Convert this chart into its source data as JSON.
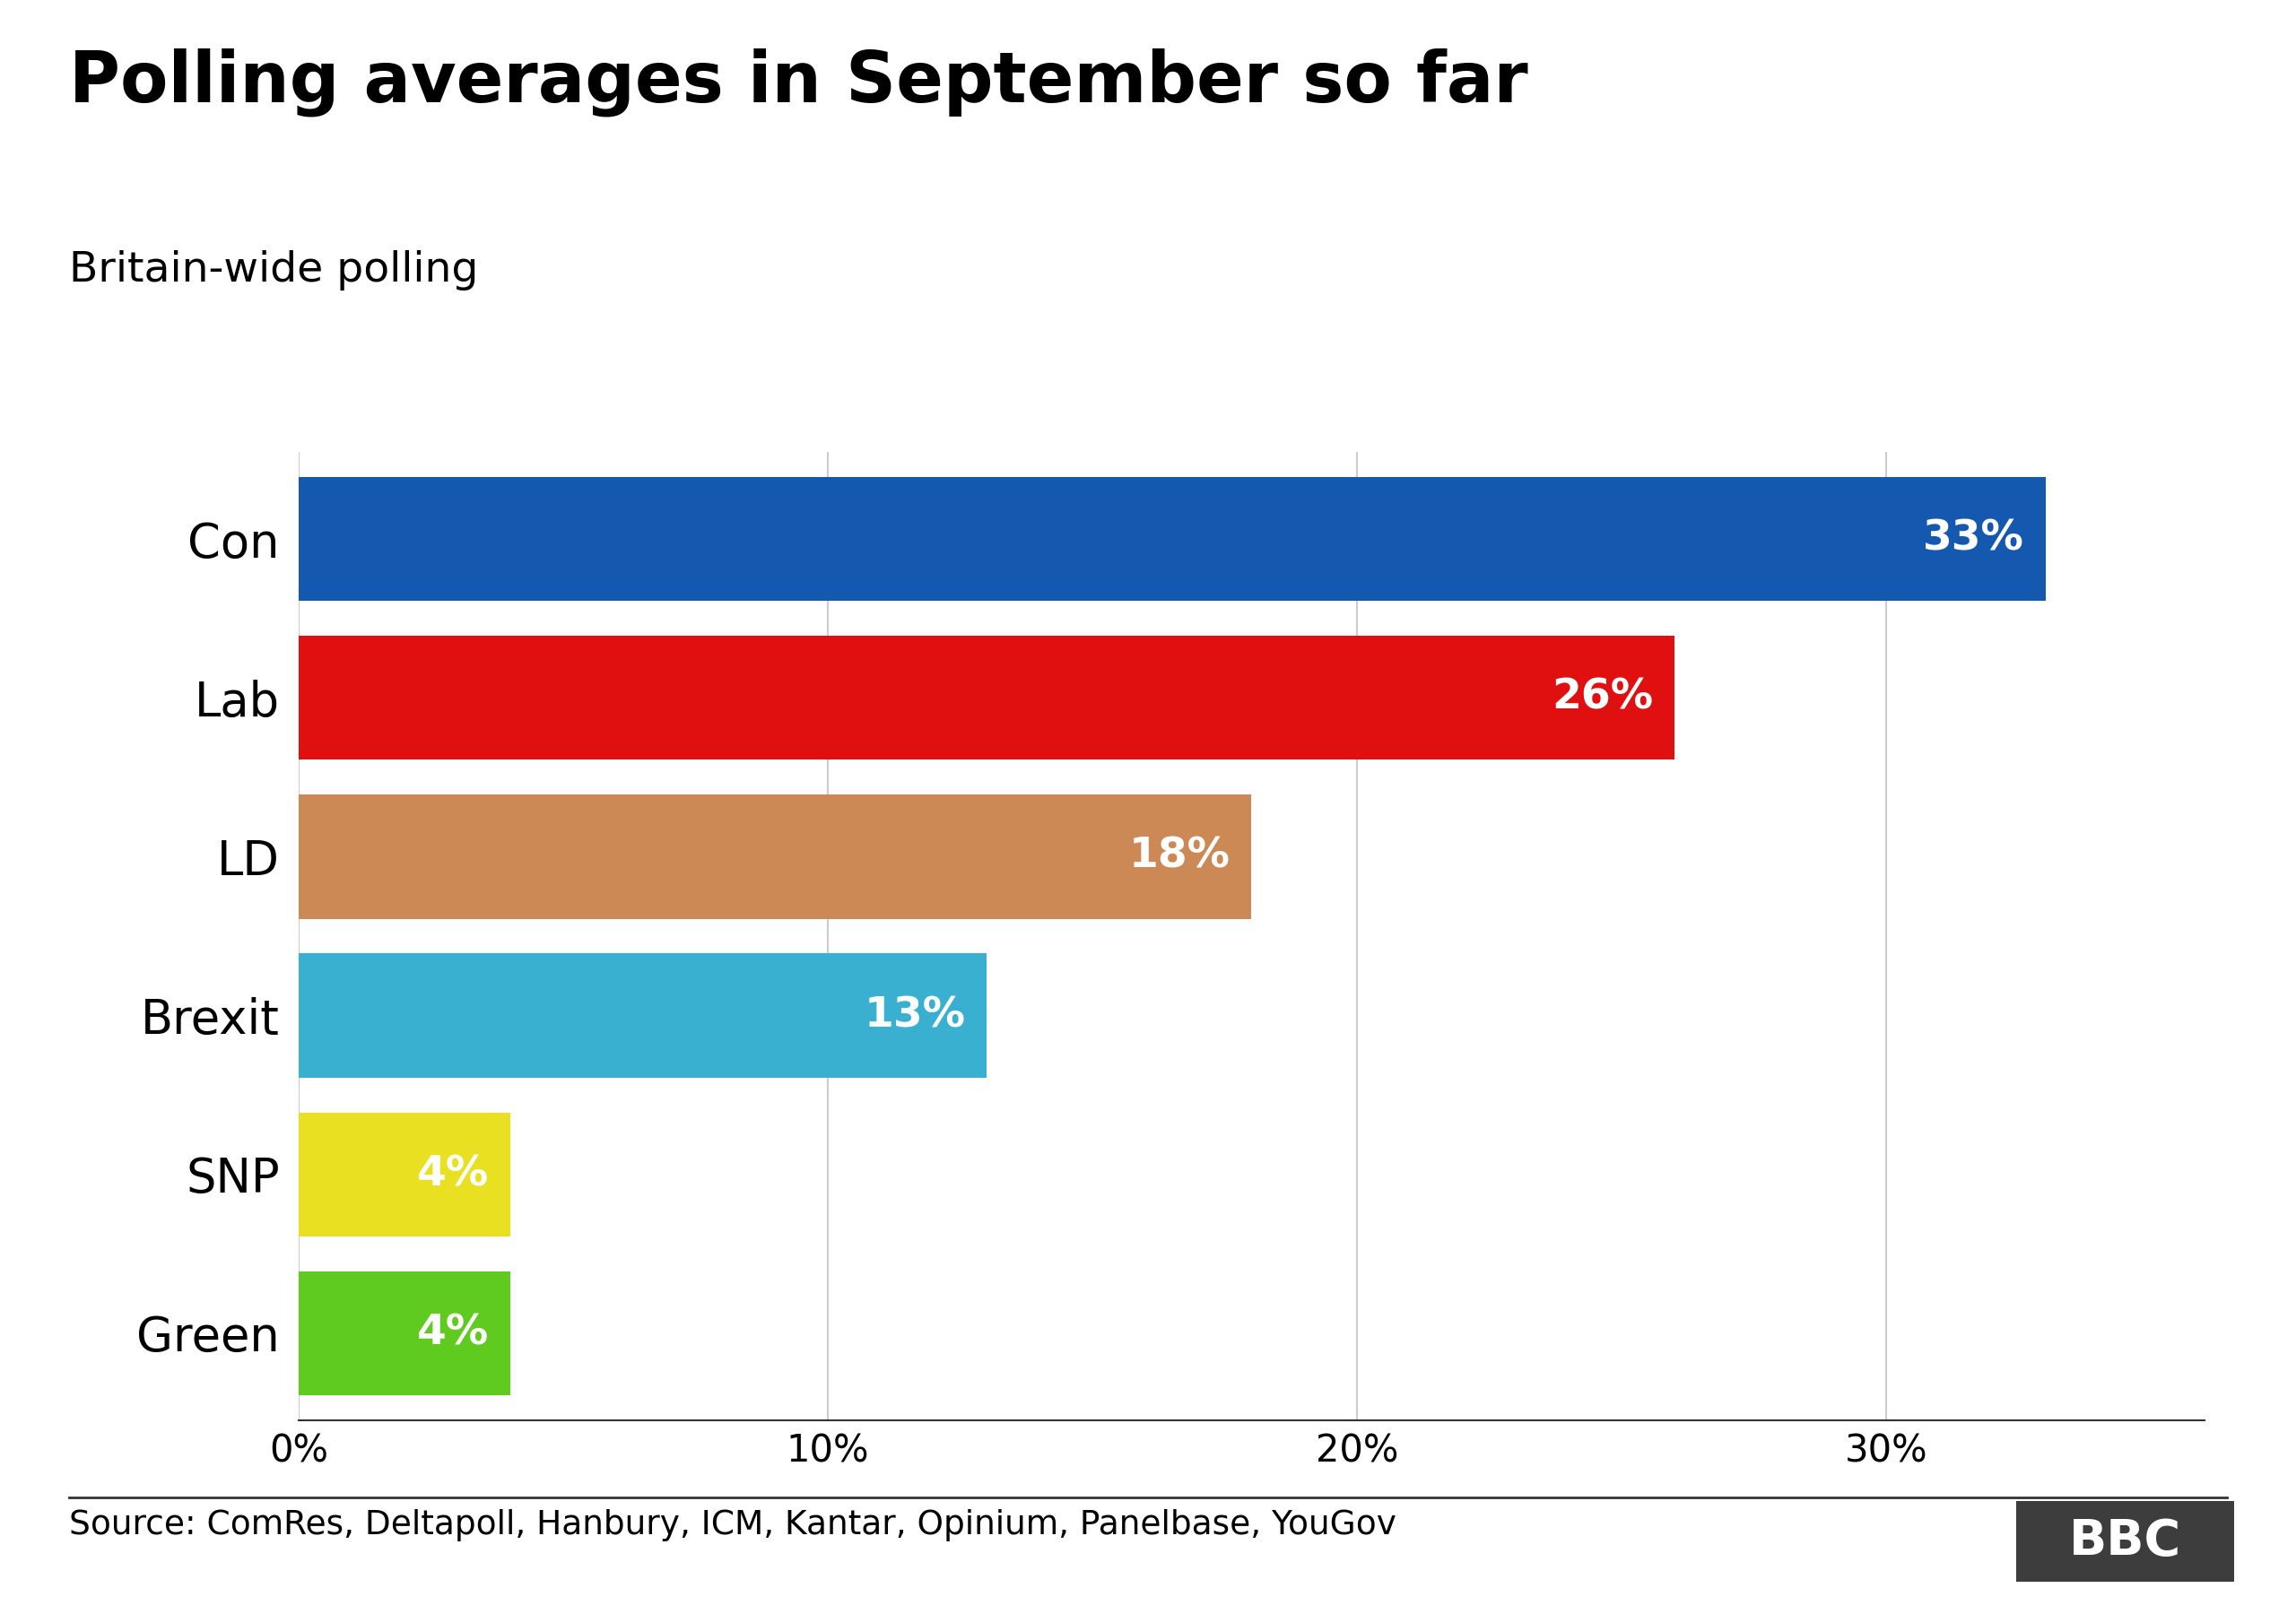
{
  "title": "Polling averages in September so far",
  "subtitle": "Britain-wide polling",
  "source_text": "Source: ComRes, Deltapoll, Hanbury, ICM, Kantar, Opinium, Panelbase, YouGov",
  "parties": [
    "Con",
    "Lab",
    "LD",
    "Brexit",
    "SNP",
    "Green"
  ],
  "values": [
    33,
    26,
    18,
    13,
    4,
    4
  ],
  "bar_colors": [
    "#1458b0",
    "#e01010",
    "#cc8855",
    "#3ab0d0",
    "#e8e020",
    "#5ecb1e"
  ],
  "label_colors": [
    "white",
    "white",
    "white",
    "white",
    "white",
    "white"
  ],
  "xlim": [
    0,
    36
  ],
  "xticks": [
    0,
    10,
    20,
    30
  ],
  "xticklabels": [
    "0%",
    "10%",
    "20%",
    "30%"
  ],
  "title_fontsize": 56,
  "subtitle_fontsize": 34,
  "tick_fontsize": 30,
  "source_fontsize": 27,
  "bar_label_fontsize": 34,
  "party_label_fontsize": 38,
  "background_color": "#ffffff",
  "grid_color": "#cccccc",
  "bbc_box_color": "#3d3d3d",
  "bbc_text_color": "#ffffff",
  "bbc_fontsize": 40
}
